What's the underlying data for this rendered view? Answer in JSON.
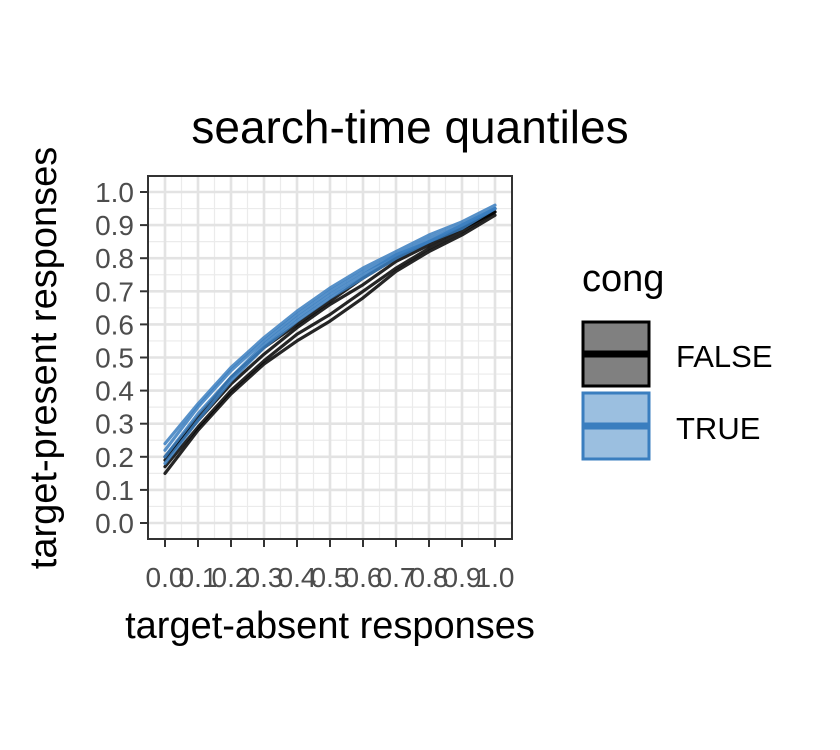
{
  "chart_data": {
    "type": "line",
    "title": "search-time quantiles",
    "xlabel": "target-absent responses",
    "ylabel": "target-present responses",
    "xlim": [
      0,
      1
    ],
    "ylim": [
      0,
      1
    ],
    "ticks": [
      "0.0",
      "0.1",
      "0.2",
      "0.3",
      "0.4",
      "0.5",
      "0.6",
      "0.7",
      "0.8",
      "0.9",
      "1.0"
    ],
    "tick_values": [
      0,
      0.1,
      0.2,
      0.3,
      0.4,
      0.5,
      0.6,
      0.7,
      0.8,
      0.9,
      1.0
    ],
    "grid": true,
    "legend": {
      "title": "cong",
      "position": "right",
      "entries": [
        {
          "label": "FALSE",
          "color": "#000000",
          "fill": "#808080"
        },
        {
          "label": "TRUE",
          "color": "#3a7ebf",
          "fill": "#9bbfe0"
        }
      ]
    },
    "series": [
      {
        "name": "FALSE",
        "color": "#000000",
        "x": [
          0.0,
          0.1,
          0.2,
          0.3,
          0.4,
          0.5,
          0.6,
          0.7,
          0.8,
          0.9,
          1.0
        ],
        "y": [
          0.15,
          0.28,
          0.39,
          0.48,
          0.55,
          0.61,
          0.68,
          0.76,
          0.82,
          0.87,
          0.93
        ]
      },
      {
        "name": "FALSE",
        "color": "#000000",
        "x": [
          0.0,
          0.1,
          0.2,
          0.3,
          0.4,
          0.5,
          0.6,
          0.7,
          0.8,
          0.9,
          1.0
        ],
        "y": [
          0.17,
          0.29,
          0.4,
          0.49,
          0.57,
          0.63,
          0.7,
          0.77,
          0.83,
          0.88,
          0.94
        ]
      },
      {
        "name": "FALSE",
        "color": "#000000",
        "x": [
          0.0,
          0.1,
          0.2,
          0.3,
          0.4,
          0.5,
          0.6,
          0.7,
          0.8,
          0.9,
          1.0
        ],
        "y": [
          0.19,
          0.31,
          0.42,
          0.51,
          0.59,
          0.66,
          0.72,
          0.79,
          0.84,
          0.89,
          0.94
        ]
      },
      {
        "name": "FALSE",
        "color": "#000000",
        "x": [
          0.0,
          0.1,
          0.2,
          0.3,
          0.4,
          0.5,
          0.6,
          0.7,
          0.8,
          0.9,
          1.0
        ],
        "y": [
          0.2,
          0.32,
          0.44,
          0.53,
          0.6,
          0.67,
          0.74,
          0.8,
          0.85,
          0.89,
          0.95
        ]
      },
      {
        "name": "TRUE",
        "color": "#3a7ebf",
        "x": [
          0.0,
          0.1,
          0.2,
          0.3,
          0.4,
          0.5,
          0.6,
          0.7,
          0.8,
          0.9,
          1.0
        ],
        "y": [
          0.2,
          0.33,
          0.44,
          0.54,
          0.62,
          0.69,
          0.75,
          0.81,
          0.85,
          0.9,
          0.95
        ]
      },
      {
        "name": "TRUE",
        "color": "#3a7ebf",
        "x": [
          0.0,
          0.1,
          0.2,
          0.3,
          0.4,
          0.5,
          0.6,
          0.7,
          0.8,
          0.9,
          1.0
        ],
        "y": [
          0.22,
          0.35,
          0.46,
          0.55,
          0.63,
          0.7,
          0.76,
          0.81,
          0.86,
          0.9,
          0.95
        ]
      },
      {
        "name": "TRUE",
        "color": "#3a7ebf",
        "x": [
          0.0,
          0.1,
          0.2,
          0.3,
          0.4,
          0.5,
          0.6,
          0.7,
          0.8,
          0.9,
          1.0
        ],
        "y": [
          0.24,
          0.36,
          0.47,
          0.56,
          0.64,
          0.71,
          0.77,
          0.82,
          0.87,
          0.91,
          0.96
        ]
      },
      {
        "name": "TRUE",
        "color": "#3a7ebf",
        "x": [
          0.0,
          0.1,
          0.2,
          0.3,
          0.4,
          0.5,
          0.6,
          0.7,
          0.8,
          0.9,
          1.0
        ],
        "y": [
          0.18,
          0.31,
          0.43,
          0.53,
          0.61,
          0.68,
          0.74,
          0.8,
          0.85,
          0.89,
          0.95
        ]
      }
    ]
  }
}
